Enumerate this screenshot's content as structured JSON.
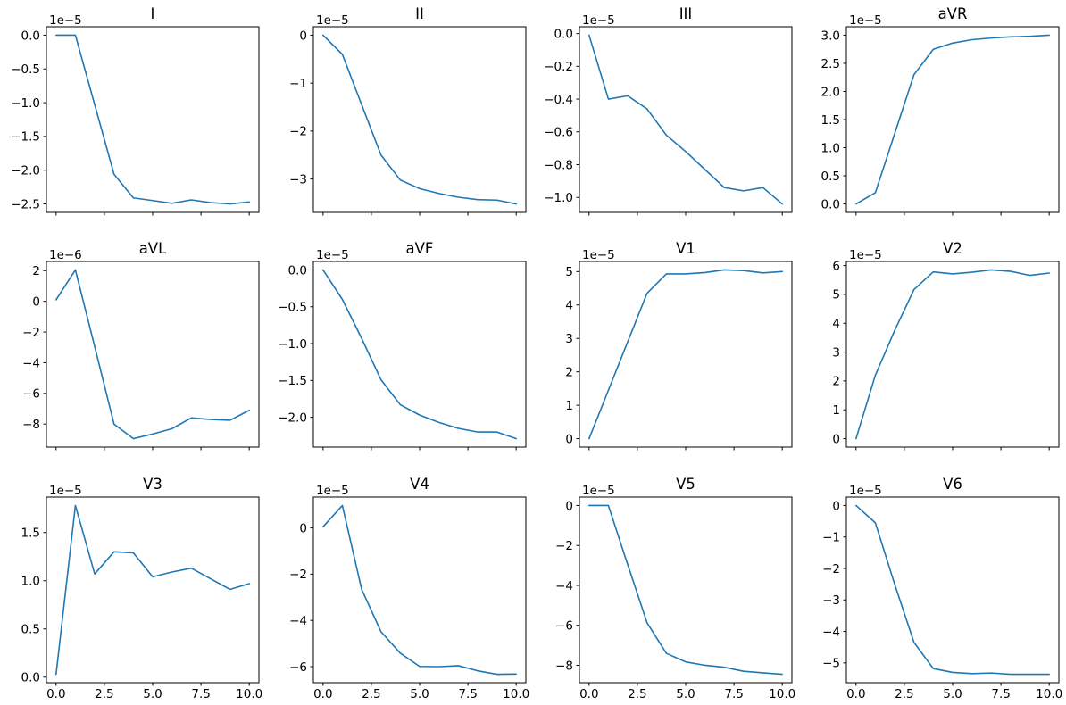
{
  "chart_data": {
    "type": "line",
    "description": "Grid of 12 ECG-lead line subplots, 3 rows x 4 columns, no grid lines, no legend, single blue series per subplot",
    "line_color": "#1f77b4",
    "axes_color": "#000000",
    "text_color": "#000000",
    "background_color": "#ffffff",
    "grid": false,
    "legend": null,
    "x": [
      0,
      1,
      2,
      3,
      4,
      5,
      6,
      7,
      8,
      9,
      10
    ],
    "xtick_values": [
      0.0,
      2.5,
      5.0,
      7.5,
      10.0
    ],
    "xtick_labels": [
      "0.0",
      "2.5",
      "5.0",
      "7.5",
      "10.0"
    ],
    "xtick_labels_shown_on": "bottom row only",
    "xlim_note": "x data 0 to 10 with 5% margins",
    "subplots": [
      {
        "title": "I",
        "offset_label": "1e−5",
        "values": [
          0.0,
          0.0,
          -1.03,
          -2.06,
          -2.41,
          -2.45,
          -2.49,
          -2.44,
          -2.48,
          -2.5,
          -2.47
        ],
        "ytick_values": [
          0.0,
          -0.5,
          -1.0,
          -1.5,
          -2.0,
          -2.5
        ],
        "ytick_labels": [
          "0.0",
          "−0.5",
          "−1.0",
          "−1.5",
          "−2.0",
          "−2.5"
        ]
      },
      {
        "title": "II",
        "offset_label": "1e−5",
        "values": [
          0.0,
          -0.4,
          -1.45,
          -2.5,
          -3.02,
          -3.2,
          -3.3,
          -3.38,
          -3.43,
          -3.44,
          -3.52
        ],
        "ytick_values": [
          0,
          -1,
          -2,
          -3
        ],
        "ytick_labels": [
          "0",
          "−1",
          "−2",
          "−3"
        ]
      },
      {
        "title": "III",
        "offset_label": "1e−5",
        "values": [
          -0.01,
          -0.4,
          -0.38,
          -0.46,
          -0.62,
          -0.72,
          -0.83,
          -0.94,
          -0.96,
          -0.94,
          -1.04
        ],
        "ytick_values": [
          0.0,
          -0.2,
          -0.4,
          -0.6,
          -0.8,
          -1.0
        ],
        "ytick_labels": [
          "0.0",
          "−0.2",
          "−0.4",
          "−0.6",
          "−0.8",
          "−1.0"
        ]
      },
      {
        "title": "aVR",
        "offset_label": "1e−5",
        "values": [
          0.0,
          0.2,
          1.25,
          2.3,
          2.75,
          2.86,
          2.92,
          2.95,
          2.97,
          2.98,
          3.0
        ],
        "ytick_values": [
          0.0,
          0.5,
          1.0,
          1.5,
          2.0,
          2.5,
          3.0
        ],
        "ytick_labels": [
          "0.0",
          "0.5",
          "1.0",
          "1.5",
          "2.0",
          "2.5",
          "3.0"
        ]
      },
      {
        "title": "aVL",
        "offset_label": "1e−6",
        "values": [
          0.1,
          2.05,
          -2.95,
          -8.0,
          -8.95,
          -8.65,
          -8.3,
          -7.6,
          -7.7,
          -7.75,
          -7.1
        ],
        "ytick_values": [
          2,
          0,
          -2,
          -4,
          -6,
          -8
        ],
        "ytick_labels": [
          "2",
          "0",
          "−2",
          "−4",
          "−6",
          "−8"
        ]
      },
      {
        "title": "aVF",
        "offset_label": "1e−5",
        "values": [
          0.0,
          -0.4,
          -0.93,
          -1.49,
          -1.83,
          -1.97,
          -2.07,
          -2.15,
          -2.2,
          -2.2,
          -2.29
        ],
        "ytick_values": [
          0.0,
          -0.5,
          -1.0,
          -1.5,
          -2.0
        ],
        "ytick_labels": [
          "0.0",
          "−0.5",
          "−1.0",
          "−1.5",
          "−2.0"
        ]
      },
      {
        "title": "V1",
        "offset_label": "1e−5",
        "values": [
          0.0,
          1.45,
          2.9,
          4.35,
          4.93,
          4.93,
          4.97,
          5.05,
          5.03,
          4.96,
          5.0
        ],
        "ytick_values": [
          0,
          1,
          2,
          3,
          4,
          5
        ],
        "ytick_labels": [
          "0",
          "1",
          "2",
          "3",
          "4",
          "5"
        ]
      },
      {
        "title": "V2",
        "offset_label": "1e−5",
        "values": [
          0.0,
          2.2,
          3.75,
          5.17,
          5.78,
          5.71,
          5.77,
          5.85,
          5.8,
          5.66,
          5.74
        ],
        "ytick_values": [
          0,
          1,
          2,
          3,
          4,
          5,
          6
        ],
        "ytick_labels": [
          "0",
          "1",
          "2",
          "3",
          "4",
          "5",
          "6"
        ]
      },
      {
        "title": "V3",
        "offset_label": "1e−5",
        "values": [
          0.03,
          1.78,
          1.07,
          1.3,
          1.29,
          1.04,
          1.09,
          1.13,
          1.02,
          0.91,
          0.97
        ],
        "ytick_values": [
          0.0,
          0.5,
          1.0,
          1.5
        ],
        "ytick_labels": [
          "0.0",
          "0.5",
          "1.0",
          "1.5"
        ]
      },
      {
        "title": "V4",
        "offset_label": "1e−5",
        "values": [
          0.05,
          0.97,
          -2.66,
          -4.49,
          -5.42,
          -5.99,
          -6.0,
          -5.96,
          -6.18,
          -6.33,
          -6.32
        ],
        "ytick_values": [
          0,
          -2,
          -4,
          -6
        ],
        "ytick_labels": [
          "0",
          "−2",
          "−4",
          "−6"
        ]
      },
      {
        "title": "V5",
        "offset_label": "1e−5",
        "values": [
          0.0,
          0.0,
          -2.96,
          -5.87,
          -7.4,
          -7.83,
          -8.0,
          -8.1,
          -8.3,
          -8.38,
          -8.45
        ],
        "ytick_values": [
          0,
          -2,
          -4,
          -6,
          -8
        ],
        "ytick_labels": [
          "0",
          "−2",
          "−4",
          "−6",
          "−8"
        ]
      },
      {
        "title": "V6",
        "offset_label": "1e−5",
        "values": [
          0.0,
          -0.55,
          -2.5,
          -4.35,
          -5.18,
          -5.3,
          -5.34,
          -5.32,
          -5.36,
          -5.36,
          -5.36
        ],
        "ytick_values": [
          0,
          -1,
          -2,
          -3,
          -4,
          -5
        ],
        "ytick_labels": [
          "0",
          "−1",
          "−2",
          "−3",
          "−4",
          "−5"
        ]
      }
    ]
  }
}
